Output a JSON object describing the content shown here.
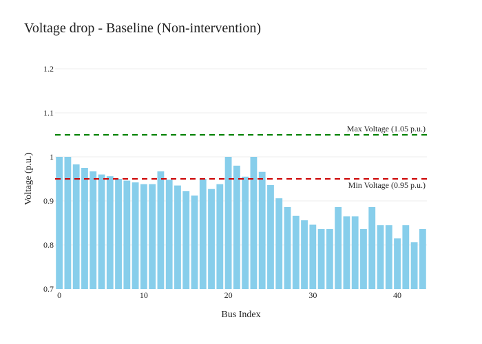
{
  "chart_data": {
    "type": "bar",
    "title": "Voltage drop - Baseline (Non-intervention)",
    "xlabel": "Bus Index",
    "ylabel": "Voltage (p.u.)",
    "ylim": [
      0.7,
      1.2
    ],
    "yticks": [
      0.7,
      0.8,
      0.9,
      1,
      1.1,
      1.2
    ],
    "ytick_labels": [
      "0.7",
      "0.8",
      "0.9",
      "1",
      "1.1",
      "1.2"
    ],
    "xticks": [
      0,
      10,
      20,
      30,
      40
    ],
    "xtick_labels": [
      "0",
      "10",
      "20",
      "30",
      "40"
    ],
    "xlim": [
      -0.5,
      43.5
    ],
    "grid": "horizontal",
    "bar_color": "#87CEEB",
    "x": [
      0,
      1,
      2,
      3,
      4,
      5,
      6,
      7,
      8,
      9,
      10,
      11,
      12,
      13,
      14,
      15,
      16,
      17,
      18,
      19,
      20,
      21,
      22,
      23,
      24,
      25,
      26,
      27,
      28,
      29,
      30,
      31,
      32,
      33,
      34,
      35,
      36,
      37,
      38,
      39,
      40,
      41,
      42,
      43
    ],
    "values": [
      1.0,
      1.0,
      0.983,
      0.975,
      0.967,
      0.96,
      0.956,
      0.95,
      0.946,
      0.942,
      0.938,
      0.938,
      0.967,
      0.948,
      0.935,
      0.922,
      0.912,
      0.95,
      0.927,
      0.938,
      1.0,
      0.98,
      0.955,
      1.0,
      0.966,
      0.936,
      0.906,
      0.886,
      0.866,
      0.856,
      0.846,
      0.836,
      0.836,
      0.886,
      0.865,
      0.865,
      0.836,
      0.886,
      0.845,
      0.845,
      0.815,
      0.845,
      0.806,
      0.836
    ],
    "reference_lines": [
      {
        "label": "Max Voltage (1.05 p.u.)",
        "y": 1.05,
        "color": "#008000"
      },
      {
        "label": "Min Voltage (0.95 p.u.)",
        "y": 0.95,
        "color": "#CC0000"
      }
    ]
  }
}
